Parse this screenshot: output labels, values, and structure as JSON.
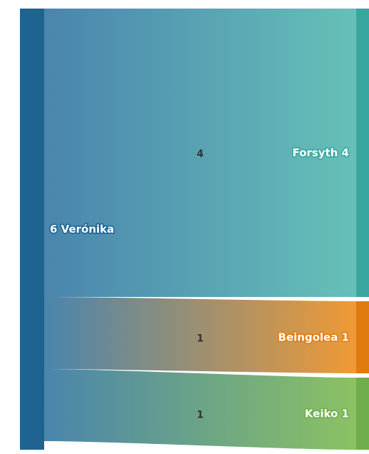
{
  "chart_data": {
    "type": "sankey",
    "title": "",
    "nodes": [
      {
        "id": "source",
        "name": "Verónika",
        "value": 6,
        "color": "#1f6391",
        "label": "6 Verónika"
      },
      {
        "id": "t1",
        "name": "Forsyth",
        "value": 4,
        "color": "#3aa6a0",
        "label": "Forsyth 4"
      },
      {
        "id": "t2",
        "name": "Beingolea",
        "value": 1,
        "color": "#e07b10",
        "label": "Beingolea 1"
      },
      {
        "id": "t3",
        "name": "Keiko",
        "value": 1,
        "color": "#6fae4a",
        "label": "Keiko 1"
      }
    ],
    "links": [
      {
        "source": "source",
        "target": "t1",
        "value": 4,
        "label": "4",
        "color_from": "#4a85ad",
        "color_to": "#66c0b8"
      },
      {
        "source": "source",
        "target": "t2",
        "value": 1,
        "label": "1",
        "color_from": "#4a85ad",
        "color_to": "#f09a35"
      },
      {
        "source": "source",
        "target": "t3",
        "value": 1,
        "label": "1",
        "color_from": "#4a85ad",
        "color_to": "#8cc262"
      }
    ]
  }
}
